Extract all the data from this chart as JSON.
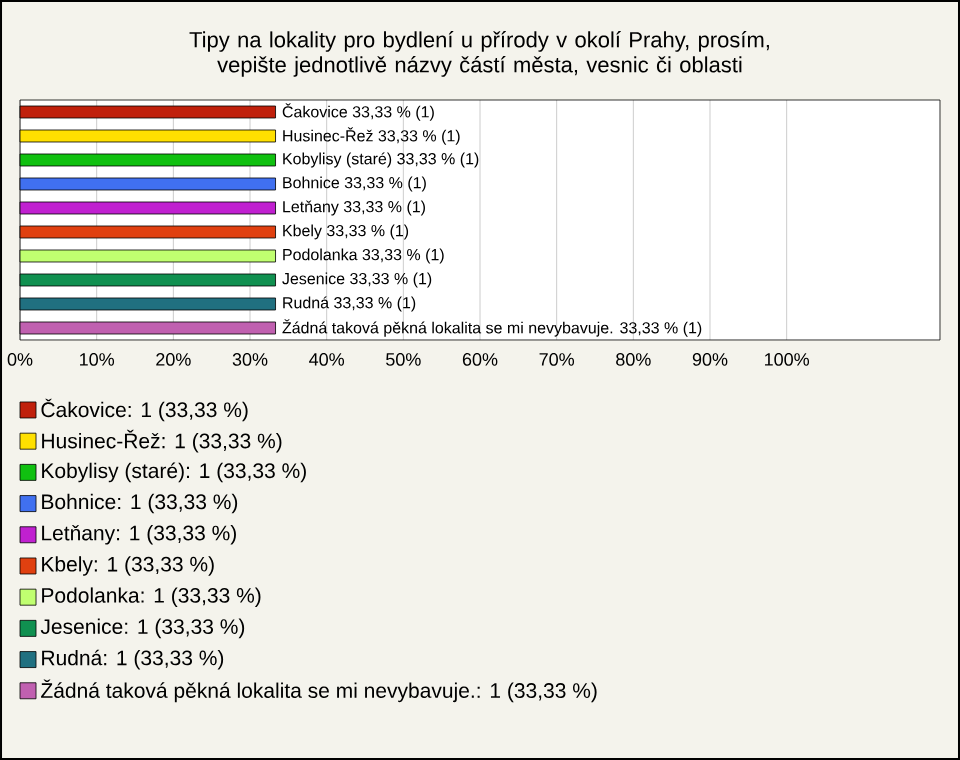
{
  "chart_data": {
    "type": "bar",
    "orientation": "horizontal",
    "title": "Tipy na lokality pro bydlení u přírody v okolí Prahy, prosím, vepište jednotlivě názvy částí města, vesnic či oblasti",
    "categories": [
      null,
      null,
      null,
      null,
      null,
      null,
      null,
      null,
      null,
      null
    ],
    "series": [
      {
        "name": "Čakovice: 1 (33,33 %)",
        "color": "#c0200c",
        "values": [
          33.33,
          null,
          null,
          null,
          null,
          null,
          null,
          null,
          null,
          null
        ],
        "value_labels": [
          "Čakovice 33,33 % (1)",
          null,
          null,
          null,
          null,
          null,
          null,
          null,
          null,
          null
        ]
      },
      {
        "name": "Husinec-Řež: 1 (33,33 %)",
        "color": "#ffe000",
        "values": [
          null,
          33.33,
          null,
          null,
          null,
          null,
          null,
          null,
          null,
          null
        ],
        "value_labels": [
          null,
          "Husinec-Řež 33,33 % (1)",
          null,
          null,
          null,
          null,
          null,
          null,
          null,
          null
        ]
      },
      {
        "name": "Kobylisy (staré): 1 (33,33 %)",
        "color": "#10c010",
        "values": [
          null,
          null,
          33.33,
          null,
          null,
          null,
          null,
          null,
          null,
          null
        ],
        "value_labels": [
          null,
          null,
          "Kobylisy (staré) 33,33 % (1)",
          null,
          null,
          null,
          null,
          null,
          null,
          null
        ]
      },
      {
        "name": "Bohnice: 1 (33,33 %)",
        "color": "#4070f0",
        "values": [
          null,
          null,
          null,
          33.33,
          null,
          null,
          null,
          null,
          null,
          null
        ],
        "value_labels": [
          null,
          null,
          null,
          "Bohnice 33,33 % (1)",
          null,
          null,
          null,
          null,
          null,
          null
        ]
      },
      {
        "name": "Letňany: 1 (33,33 %)",
        "color": "#c020d0",
        "values": [
          null,
          null,
          null,
          null,
          33.33,
          null,
          null,
          null,
          null,
          null
        ],
        "value_labels": [
          null,
          null,
          null,
          null,
          "Letňany 33,33 % (1)",
          null,
          null,
          null,
          null,
          null
        ]
      },
      {
        "name": "Kbely: 1 (33,33 %)",
        "color": "#e04010",
        "values": [
          null,
          null,
          null,
          null,
          null,
          33.33,
          null,
          null,
          null,
          null
        ],
        "value_labels": [
          null,
          null,
          null,
          null,
          null,
          "Kbely 33,33 % (1)",
          null,
          null,
          null,
          null
        ]
      },
      {
        "name": "Podolanka: 1 (33,33 %)",
        "color": "#c0ff70",
        "values": [
          null,
          null,
          null,
          null,
          null,
          null,
          33.33,
          null,
          null,
          null
        ],
        "value_labels": [
          null,
          null,
          null,
          null,
          null,
          null,
          "Podolanka 33,33 % (1)",
          null,
          null,
          null
        ]
      },
      {
        "name": "Jesenice: 1 (33,33 %)",
        "color": "#109050",
        "values": [
          null,
          null,
          null,
          null,
          null,
          null,
          null,
          33.33,
          null,
          null
        ],
        "value_labels": [
          null,
          null,
          null,
          null,
          null,
          null,
          null,
          "Jesenice 33,33 % (1)",
          null,
          null
        ]
      },
      {
        "name": "Rudná: 1 (33,33 %)",
        "color": "#207080",
        "values": [
          null,
          null,
          null,
          null,
          null,
          null,
          null,
          null,
          33.33,
          null
        ],
        "value_labels": [
          null,
          null,
          null,
          null,
          null,
          null,
          null,
          null,
          "Rudná 33,33 % (1)",
          null
        ]
      },
      {
        "name": "Žádná taková pěkná lokalita se mi nevybavuje.: 1 (33,33 %)",
        "color": "#c060b0",
        "values": [
          null,
          null,
          null,
          null,
          null,
          null,
          null,
          null,
          null,
          33.33
        ],
        "value_labels": [
          null,
          null,
          null,
          null,
          null,
          null,
          null,
          null,
          null,
          "Žádná taková pěkná lokalita se mi nevybavuje. 33,33 % (1)"
        ]
      }
    ],
    "xlim": [
      0,
      120
    ],
    "xticks": [
      {
        "value": 0,
        "label": "0%"
      },
      {
        "value": 10,
        "label": "10%"
      },
      {
        "value": 20,
        "label": "20%"
      },
      {
        "value": 30,
        "label": "30%"
      },
      {
        "value": 40,
        "label": "40%"
      },
      {
        "value": 50,
        "label": "50%"
      },
      {
        "value": 60,
        "label": "60%"
      },
      {
        "value": 70,
        "label": "70%"
      },
      {
        "value": 80,
        "label": "80%"
      },
      {
        "value": 90,
        "label": "90%"
      },
      {
        "value": 100,
        "label": "100%"
      }
    ],
    "grid": "x",
    "legend": "bottom"
  }
}
